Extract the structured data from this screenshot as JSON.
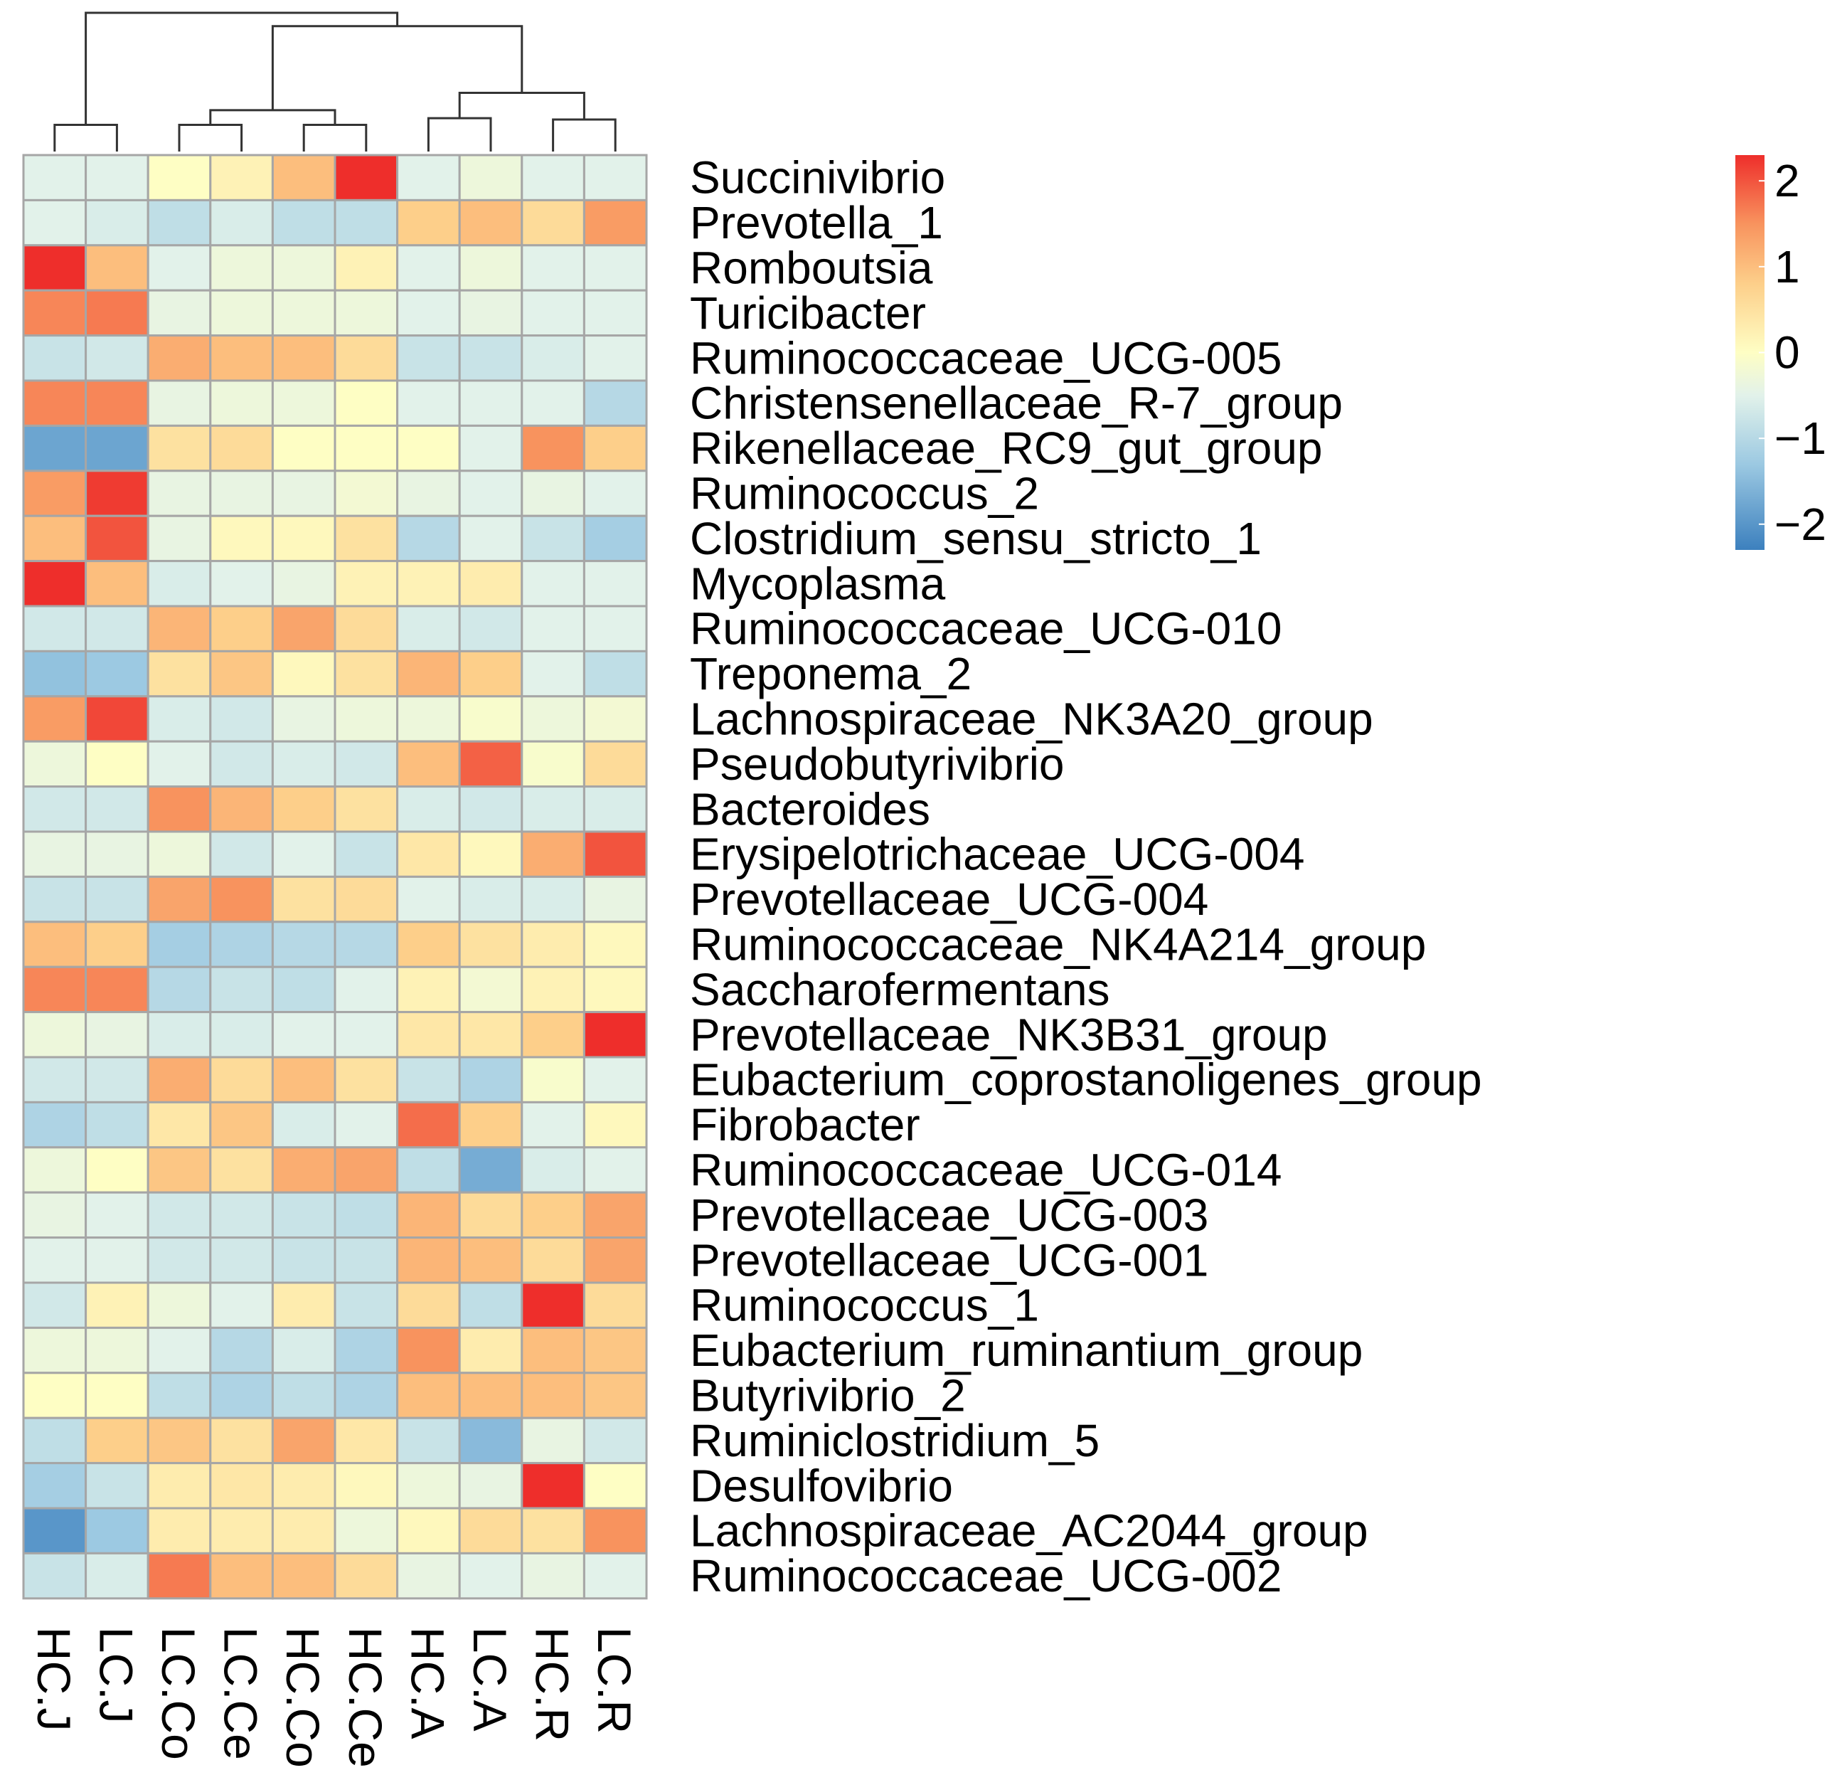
{
  "chart_data": {
    "type": "heatmap",
    "title": "",
    "columns": [
      "HC.J",
      "LC.J",
      "LC.Co",
      "LC.Ce",
      "HC.Co",
      "HC.Ce",
      "HC.A",
      "LC.A",
      "HC.R",
      "LC.R"
    ],
    "rows": [
      "Succinivibrio",
      "Prevotella_1",
      "Romboutsia",
      "Turicibacter",
      "Ruminococcaceae_UCG-005",
      "Christensenellaceae_R-7_group",
      "Rikenellaceae_RC9_gut_group",
      "Ruminococcus_2",
      "Clostridium_sensu_stricto_1",
      "Mycoplasma",
      "Ruminococcaceae_UCG-010",
      "Treponema_2",
      "Lachnospiraceae_NK3A20_group",
      "Pseudobutyrivibrio",
      "Bacteroides",
      "Erysipelotrichaceae_UCG-004",
      "Prevotellaceae_UCG-004",
      "Ruminococcaceae_NK4A214_group",
      "Saccharofermentans",
      "Prevotellaceae_NK3B31_group",
      "Eubacterium_coprostanoligenes_group",
      "Fibrobacter",
      "Ruminococcaceae_UCG-014",
      "Prevotellaceae_UCG-003",
      "Prevotellaceae_UCG-001",
      "Ruminococcus_1",
      "Eubacterium_ruminantium_group",
      "Butyrivibrio_2",
      "Ruminiclostridium_5",
      "Desulfovibrio",
      "Lachnospiraceae_AC2044_group",
      "Ruminococcaceae_UCG-002"
    ],
    "values": [
      [
        -0.5,
        -0.5,
        0.0,
        0.2,
        1.0,
        2.4,
        -0.5,
        -0.3,
        -0.5,
        -0.5
      ],
      [
        -0.5,
        -0.6,
        -0.9,
        -0.6,
        -0.9,
        -0.9,
        0.8,
        1.0,
        0.6,
        1.4
      ],
      [
        2.4,
        1.0,
        -0.5,
        -0.3,
        -0.3,
        0.2,
        -0.5,
        -0.3,
        -0.5,
        -0.5
      ],
      [
        1.6,
        1.7,
        -0.4,
        -0.3,
        -0.3,
        -0.3,
        -0.5,
        -0.4,
        -0.5,
        -0.5
      ],
      [
        -0.8,
        -0.7,
        1.2,
        1.0,
        1.0,
        0.6,
        -0.8,
        -0.8,
        -0.6,
        -0.5
      ],
      [
        1.6,
        1.6,
        -0.4,
        -0.3,
        -0.3,
        0.0,
        -0.5,
        -0.5,
        -0.5,
        -1.0
      ],
      [
        -1.8,
        -1.8,
        0.5,
        0.6,
        0.0,
        0.0,
        0.0,
        -0.5,
        1.5,
        0.8
      ],
      [
        1.4,
        2.2,
        -0.4,
        -0.4,
        -0.4,
        -0.2,
        -0.4,
        -0.5,
        -0.4,
        -0.5
      ],
      [
        1.0,
        2.0,
        -0.4,
        0.1,
        0.1,
        0.5,
        -1.0,
        -0.5,
        -0.8,
        -1.2
      ],
      [
        2.3,
        1.0,
        -0.6,
        -0.5,
        -0.4,
        0.2,
        0.2,
        0.3,
        -0.5,
        -0.5
      ],
      [
        -0.7,
        -0.7,
        1.1,
        0.8,
        1.3,
        0.6,
        -0.6,
        -0.7,
        -0.5,
        -0.5
      ],
      [
        -1.4,
        -1.3,
        0.5,
        0.9,
        0.1,
        0.5,
        1.1,
        0.8,
        -0.5,
        -0.9
      ],
      [
        1.4,
        2.1,
        -0.6,
        -0.7,
        -0.4,
        -0.3,
        -0.3,
        -0.1,
        -0.3,
        -0.2
      ],
      [
        -0.3,
        0.0,
        -0.5,
        -0.7,
        -0.6,
        -0.7,
        1.0,
        1.9,
        -0.1,
        0.6
      ],
      [
        -0.7,
        -0.7,
        1.5,
        1.1,
        0.8,
        0.5,
        -0.6,
        -0.7,
        -0.6,
        -0.6
      ],
      [
        -0.4,
        -0.4,
        -0.3,
        -0.7,
        -0.5,
        -0.8,
        0.4,
        0.1,
        1.2,
        2.0
      ],
      [
        -0.8,
        -0.8,
        1.3,
        1.5,
        0.5,
        0.6,
        -0.5,
        -0.6,
        -0.6,
        -0.4
      ],
      [
        1.0,
        0.8,
        -1.2,
        -1.1,
        -1.0,
        -1.0,
        0.8,
        0.5,
        0.3,
        0.1
      ],
      [
        1.6,
        1.6,
        -1.0,
        -0.8,
        -0.9,
        -0.5,
        0.2,
        -0.2,
        0.2,
        0.1
      ],
      [
        -0.3,
        -0.4,
        -0.6,
        -0.6,
        -0.5,
        -0.5,
        0.4,
        0.4,
        0.8,
        2.4
      ],
      [
        -0.7,
        -0.7,
        1.2,
        0.6,
        1.0,
        0.5,
        -0.8,
        -1.1,
        -0.1,
        -0.5
      ],
      [
        -1.1,
        -0.9,
        0.4,
        0.9,
        -0.6,
        -0.5,
        1.8,
        0.8,
        -0.5,
        0.1
      ],
      [
        -0.3,
        0.0,
        0.9,
        0.5,
        1.2,
        1.3,
        -0.9,
        -1.7,
        -0.6,
        -0.5
      ],
      [
        -0.4,
        -0.5,
        -0.7,
        -0.7,
        -0.8,
        -0.9,
        1.1,
        0.6,
        0.8,
        1.3
      ],
      [
        -0.5,
        -0.5,
        -0.7,
        -0.7,
        -0.8,
        -0.8,
        1.1,
        1.0,
        0.6,
        1.3
      ],
      [
        -0.7,
        0.2,
        -0.3,
        -0.5,
        0.3,
        -0.8,
        0.6,
        -0.9,
        2.3,
        0.6
      ],
      [
        -0.3,
        -0.3,
        -0.5,
        -1.0,
        -0.6,
        -1.1,
        1.5,
        0.3,
        1.0,
        0.9
      ],
      [
        0.0,
        0.0,
        -0.9,
        -1.1,
        -0.9,
        -1.1,
        1.0,
        1.0,
        1.0,
        0.9
      ],
      [
        -0.9,
        0.8,
        0.9,
        0.5,
        1.3,
        0.4,
        -0.8,
        -1.5,
        -0.4,
        -0.7
      ],
      [
        -1.2,
        -0.8,
        0.3,
        0.4,
        0.3,
        0.1,
        -0.3,
        -0.4,
        2.4,
        0.0
      ],
      [
        -2.0,
        -1.3,
        0.3,
        0.3,
        0.3,
        -0.3,
        0.1,
        0.6,
        0.5,
        1.5
      ],
      [
        -0.8,
        -0.6,
        1.7,
        1.0,
        1.0,
        0.6,
        -0.4,
        -0.5,
        -0.4,
        -0.5
      ]
    ],
    "color_scale": {
      "min": -2.3,
      "max": 2.3,
      "stops": [
        {
          "value": -2.3,
          "color": "#3C80BE"
        },
        {
          "value": -1.3,
          "color": "#9CC9E2"
        },
        {
          "value": -0.5,
          "color": "#E2F2EA"
        },
        {
          "value": 0,
          "color": "#FEFEC4"
        },
        {
          "value": 0.8,
          "color": "#FDCF8A"
        },
        {
          "value": 1.5,
          "color": "#F8935E"
        },
        {
          "value": 2.3,
          "color": "#EE2E2B"
        }
      ],
      "tick_values": [
        2,
        1,
        0,
        -1,
        -2
      ],
      "tick_labels": [
        "2",
        "1",
        "0",
        "−1",
        "−2"
      ]
    },
    "column_dendrogram": {
      "merges": [
        {
          "a": 0,
          "b": 1,
          "height": 1
        },
        {
          "a": 2,
          "b": 3,
          "height": 1
        },
        {
          "a": 4,
          "b": 5,
          "height": 1
        },
        {
          "a": 8,
          "b": 9,
          "height": 1.2
        },
        {
          "a": 6,
          "b": 7,
          "height": 1.25
        },
        {
          "a": "L1",
          "b": "L2",
          "height": 1.55
        },
        {
          "a": "L3",
          "b": "L4",
          "height": 2.2
        },
        {
          "a": "L5",
          "b": "L6",
          "height": 4.7
        },
        {
          "a": "L0",
          "b": "L7",
          "height": 5.2
        }
      ]
    }
  },
  "colors": {
    "grid": "#A6A6A6",
    "dendrogram": "#333333",
    "text": "#000000"
  }
}
